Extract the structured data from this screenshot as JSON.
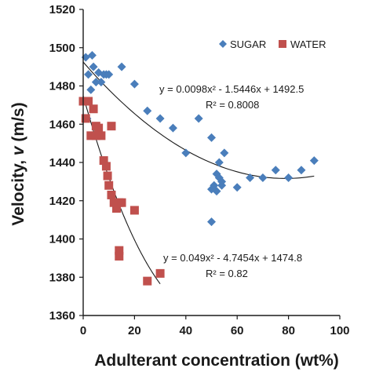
{
  "chart_data": {
    "type": "scatter",
    "xlabel": "Adulterant concentration (wt%)",
    "ylabel_prefix": "Velocity, ",
    "ylabel_var": "v",
    "ylabel_suffix": " (m/s)",
    "xlim": [
      0,
      100
    ],
    "ylim": [
      1360,
      1520
    ],
    "xticks": [
      0,
      20,
      40,
      60,
      80,
      100
    ],
    "yticks": [
      1360,
      1380,
      1400,
      1420,
      1440,
      1460,
      1480,
      1500,
      1520
    ],
    "legend_position": "top-right",
    "series": [
      {
        "name": "SUGAR",
        "marker": "diamond",
        "color": "#4a7ebb",
        "points": [
          [
            1,
            1495
          ],
          [
            1.5,
            1463
          ],
          [
            2,
            1486
          ],
          [
            3,
            1478
          ],
          [
            3.5,
            1496
          ],
          [
            4,
            1490
          ],
          [
            5,
            1482
          ],
          [
            6,
            1487
          ],
          [
            7,
            1482
          ],
          [
            8,
            1486
          ],
          [
            9,
            1486
          ],
          [
            10,
            1486
          ],
          [
            15,
            1490
          ],
          [
            20,
            1481
          ],
          [
            25,
            1467
          ],
          [
            30,
            1463
          ],
          [
            35,
            1458
          ],
          [
            40,
            1445
          ],
          [
            45,
            1463
          ],
          [
            50,
            1453
          ],
          [
            50,
            1426
          ],
          [
            50,
            1409
          ],
          [
            51,
            1428
          ],
          [
            52,
            1434
          ],
          [
            52,
            1425
          ],
          [
            53,
            1440
          ],
          [
            53,
            1432
          ],
          [
            54,
            1430
          ],
          [
            54,
            1428
          ],
          [
            55,
            1445
          ],
          [
            60,
            1427
          ],
          [
            65,
            1432
          ],
          [
            70,
            1432
          ],
          [
            75,
            1436
          ],
          [
            80,
            1432
          ],
          [
            85,
            1436
          ],
          [
            90,
            1441
          ]
        ]
      },
      {
        "name": "WATER",
        "marker": "square",
        "color": "#c0504d",
        "points": [
          [
            0,
            1472
          ],
          [
            1,
            1463
          ],
          [
            2,
            1472
          ],
          [
            3,
            1454
          ],
          [
            4,
            1468
          ],
          [
            5,
            1459
          ],
          [
            5,
            1454
          ],
          [
            6,
            1458
          ],
          [
            7,
            1454
          ],
          [
            8,
            1441
          ],
          [
            9,
            1438
          ],
          [
            9.5,
            1433
          ],
          [
            10,
            1428
          ],
          [
            11,
            1423
          ],
          [
            11,
            1459
          ],
          [
            12,
            1419
          ],
          [
            13,
            1416
          ],
          [
            14,
            1419
          ],
          [
            14,
            1394
          ],
          [
            14,
            1391
          ],
          [
            15,
            1419
          ],
          [
            20,
            1415
          ],
          [
            25,
            1378
          ],
          [
            30,
            1382
          ]
        ]
      }
    ],
    "trendlines": [
      {
        "series": "SUGAR",
        "a": 0.0098,
        "b": -1.5446,
        "c": 1492.5,
        "x_range": [
          0,
          90
        ]
      },
      {
        "series": "WATER",
        "a": 0.049,
        "b": -4.7454,
        "c": 1474.8,
        "x_range": [
          0,
          30
        ]
      }
    ],
    "annotations": [
      {
        "equation": "y = 0.0098x² - 1.5446x + 1492.5",
        "r2": "R² = 0.8008"
      },
      {
        "equation": "y = 0.049x² - 4.7454x + 1474.8",
        "r2": "R² = 0.82"
      }
    ]
  }
}
